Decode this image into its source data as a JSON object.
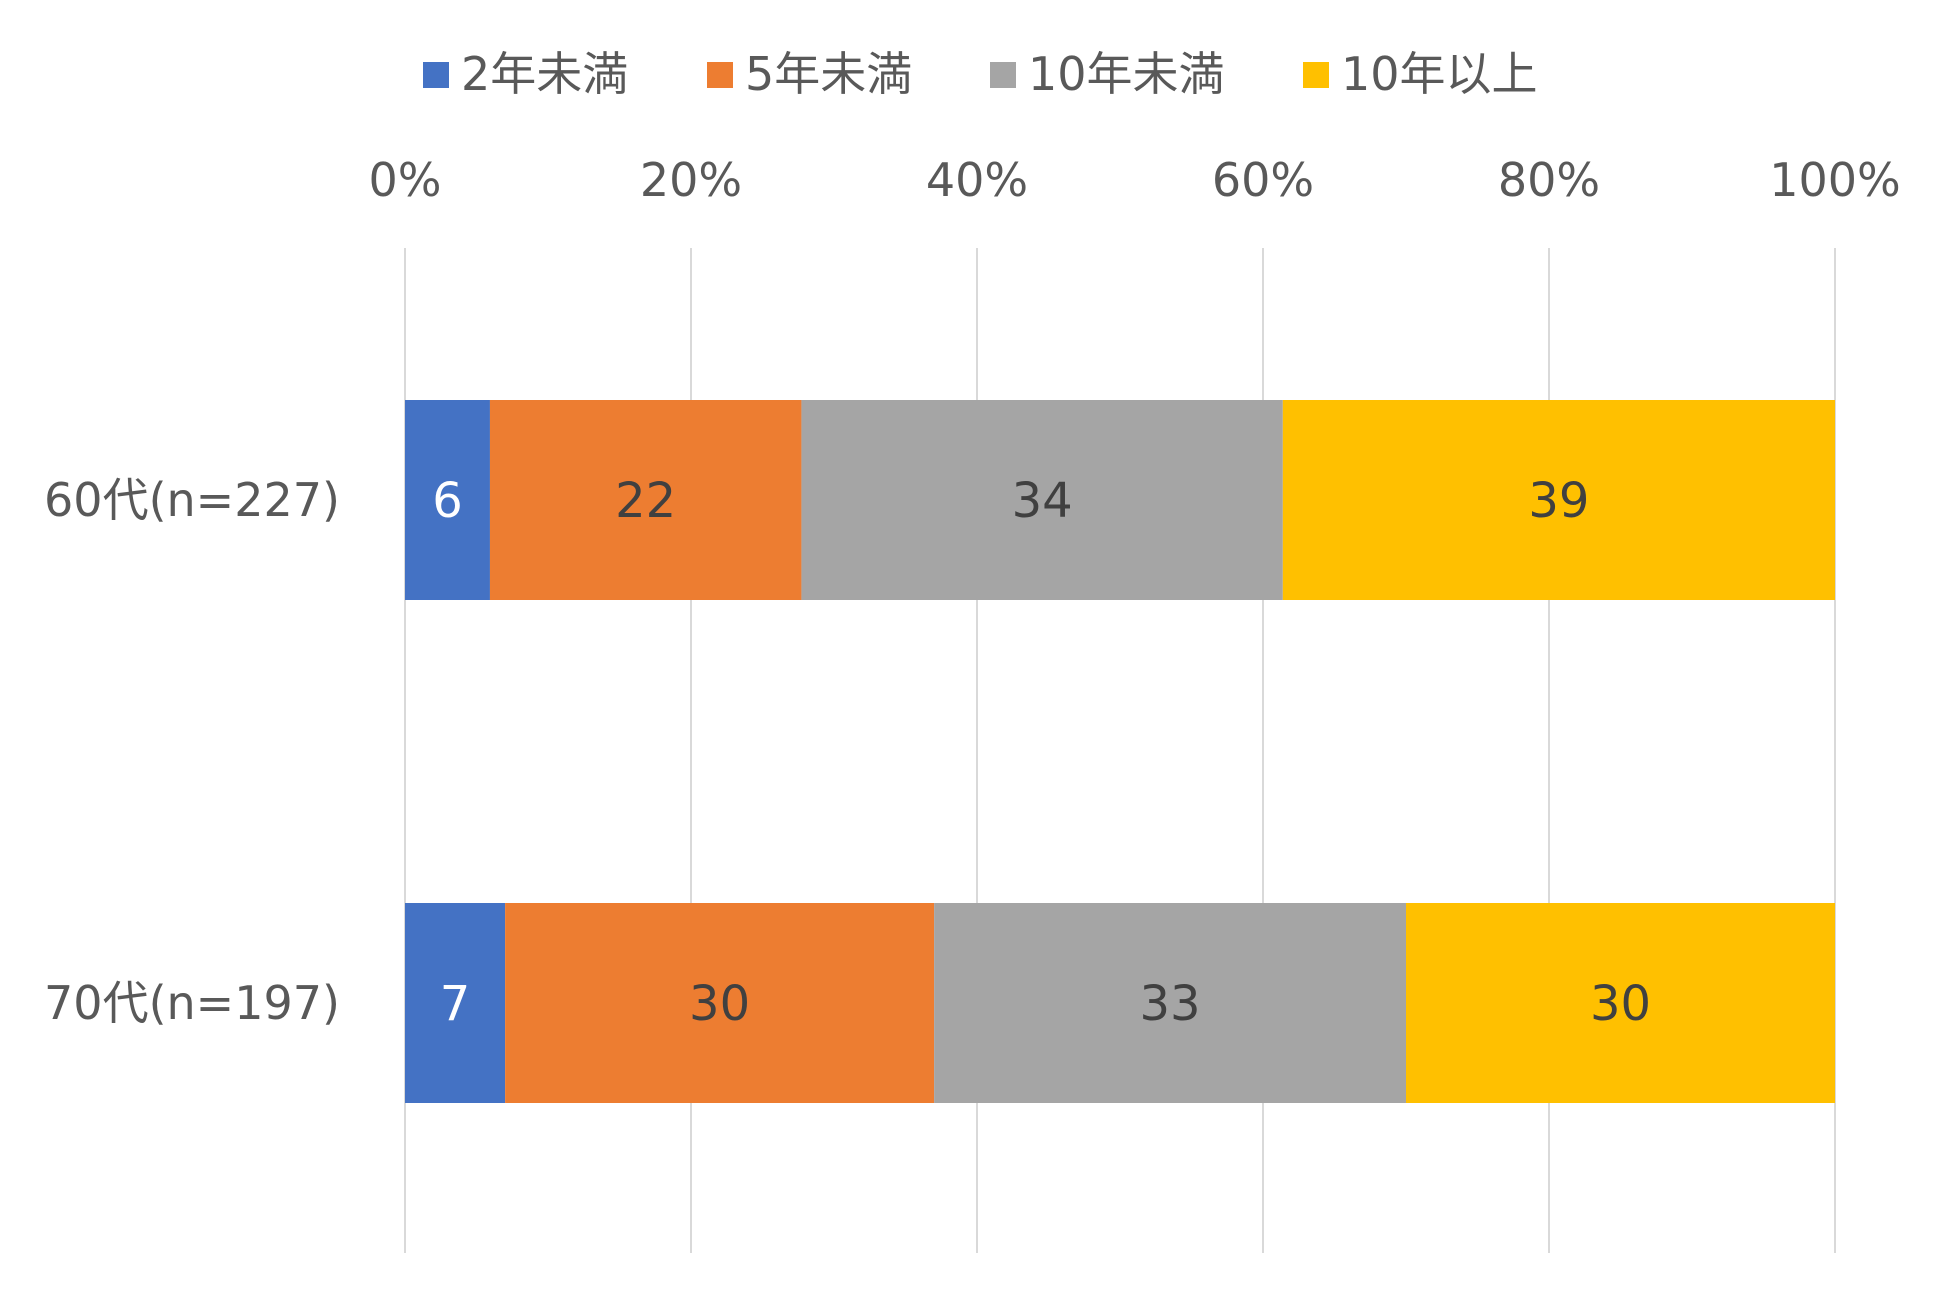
{
  "chart_data": {
    "type": "bar",
    "orientation": "horizontal",
    "stacked": "percent",
    "categories": [
      "60代(n=227)",
      "70代(n=197)"
    ],
    "series": [
      {
        "name": "2年未満",
        "color": "#4472C4",
        "label_color": "#ffffff",
        "values": [
          6,
          7
        ]
      },
      {
        "name": "5年未満",
        "color": "#ED7D31",
        "label_color": "#404040",
        "values": [
          22,
          30
        ]
      },
      {
        "name": "10年未満",
        "color": "#A5A5A5",
        "label_color": "#404040",
        "values": [
          34,
          33
        ]
      },
      {
        "name": "10年以上",
        "color": "#FFC000",
        "label_color": "#404040",
        "values": [
          39,
          30
        ]
      }
    ],
    "x_ticks": [
      "0%",
      "20%",
      "40%",
      "60%",
      "80%",
      "100%"
    ],
    "xlim": [
      0,
      100
    ],
    "x_axis_position": "top",
    "legend_position": "top",
    "grid": true
  }
}
